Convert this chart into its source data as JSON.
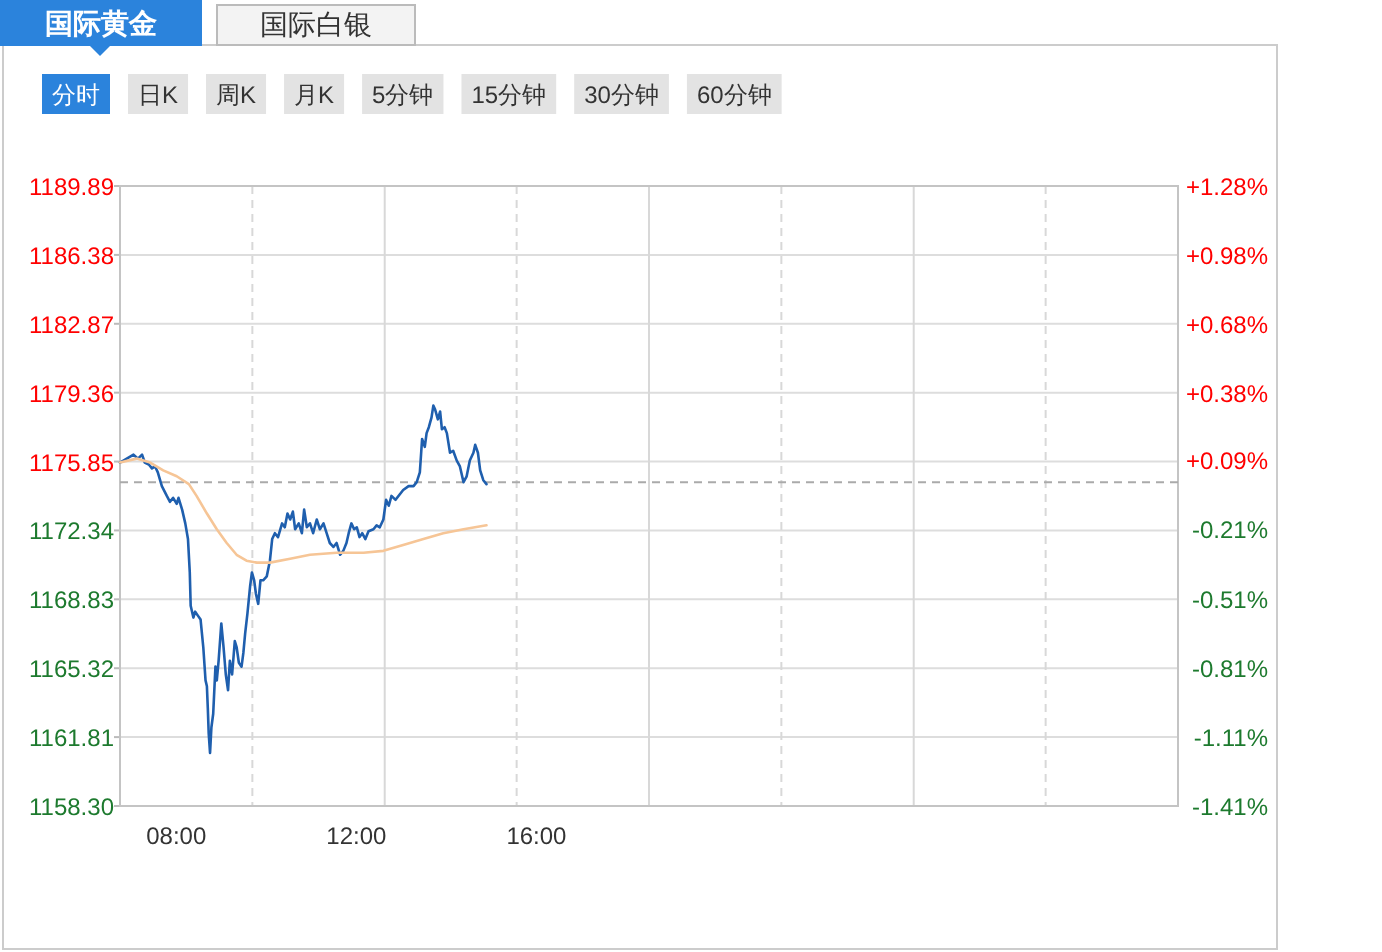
{
  "chart_data": {
    "type": "line",
    "title": "国际黄金",
    "annotations": [
      "国际白银",
      "分时",
      "日K",
      "周K",
      "月K",
      "5分钟",
      "15分钟",
      "30分钟",
      "60分钟"
    ],
    "xlim": [
      6.75,
      30.25
    ],
    "xticks": [
      {
        "value": 8,
        "label": "08:00"
      },
      {
        "value": 9.69,
        "label": null
      },
      {
        "value": 12,
        "label": "12:00"
      },
      {
        "value": 12.63,
        "label": null
      },
      {
        "value": 15.56,
        "label": null
      },
      {
        "value": 16,
        "label": "16:00"
      },
      {
        "value": 18.5,
        "label": null
      },
      {
        "value": 21.44,
        "label": null
      },
      {
        "value": 24.38,
        "label": null
      },
      {
        "value": 27.31,
        "label": null
      }
    ],
    "ylim": [
      1158.3,
      1189.89
    ],
    "yticks": [
      {
        "value": 1158.3,
        "label": "1158.30"
      },
      1161.81,
      1165.32,
      1168.83,
      1172.34,
      1175.85,
      1179.36,
      1182.87,
      1186.38,
      1189.89
    ],
    "y2lim": [
      -1.41,
      1.28
    ],
    "y2ticks": [
      {
        "value": -1.41,
        "label": "-1.41%"
      },
      {
        "value": -1.11,
        "label": "-1.11%"
      },
      {
        "value": -0.81,
        "label": "-0.81%"
      },
      {
        "value": -0.51,
        "label": "-0.51%"
      },
      {
        "value": -0.21,
        "label": "-0.21%"
      },
      {
        "value": 0.09,
        "label": "+0.09%"
      },
      {
        "value": 0.38,
        "label": "+0.38%"
      },
      {
        "value": 0.68,
        "label": "+0.68%"
      },
      {
        "value": 0.98,
        "label": "+0.98%"
      },
      {
        "value": 1.28,
        "label": "+1.28%"
      }
    ],
    "grid": true,
    "ref_lines": [
      {
        "axis": "y",
        "value": 1174.8,
        "color": "#aaaaaa",
        "line_style": "dashed"
      }
    ],
    "series": [
      {
        "color": "#1f5fae",
        "x": [
          6.75,
          6.9,
          7.05,
          7.15,
          7.24,
          7.3,
          7.39,
          7.46,
          7.53,
          7.59,
          7.68,
          7.79,
          7.86,
          7.93,
          8.01,
          8.05,
          8.13,
          8.2,
          8.26,
          8.3,
          8.32,
          8.38,
          8.42,
          8.48,
          8.54,
          8.6,
          8.65,
          8.68,
          8.7,
          8.72,
          8.75,
          8.78,
          8.82,
          8.87,
          8.9,
          8.94,
          9.0,
          9.05,
          9.1,
          9.15,
          9.19,
          9.24,
          9.3,
          9.34,
          9.39,
          9.45,
          9.49,
          9.53,
          9.58,
          9.64,
          9.68,
          9.73,
          9.77,
          9.82,
          9.87,
          9.93,
          10.01,
          10.08,
          10.13,
          10.19,
          10.26,
          10.35,
          10.41,
          10.47,
          10.53,
          10.59,
          10.64,
          10.72,
          10.79,
          10.84,
          10.9,
          10.97,
          11.04,
          11.12,
          11.19,
          11.27,
          11.34,
          11.41,
          11.49,
          11.56,
          11.64,
          11.71,
          11.78,
          11.83,
          11.89,
          11.95,
          12.01,
          12.07,
          12.13,
          12.2,
          12.27,
          12.38,
          12.45,
          12.52,
          12.6,
          12.66,
          12.72,
          12.78,
          12.87,
          12.97,
          13.04,
          13.16,
          13.27,
          13.34,
          13.41,
          13.46,
          13.52,
          13.56,
          13.61,
          13.67,
          13.71,
          13.75,
          13.81,
          13.86,
          13.9,
          13.96,
          14.01,
          14.08,
          14.15,
          14.23,
          14.3,
          14.38,
          14.45,
          14.52,
          14.6,
          14.64,
          14.7,
          14.75,
          14.82,
          14.89
        ],
        "values": [
          1175.8,
          1176.0,
          1176.2,
          1176.0,
          1176.2,
          1175.8,
          1175.7,
          1175.5,
          1175.6,
          1175.3,
          1174.6,
          1174.1,
          1173.8,
          1174.0,
          1173.7,
          1174.0,
          1173.4,
          1172.7,
          1171.9,
          1170.2,
          1168.5,
          1167.9,
          1168.2,
          1168.0,
          1167.8,
          1166.4,
          1164.7,
          1164.4,
          1163.3,
          1162.0,
          1161.0,
          1162.3,
          1163.0,
          1165.4,
          1164.7,
          1165.7,
          1167.6,
          1166.4,
          1165.0,
          1164.2,
          1165.7,
          1165.0,
          1166.7,
          1166.4,
          1165.6,
          1165.4,
          1166.1,
          1167.1,
          1168.1,
          1169.5,
          1170.2,
          1169.8,
          1169.1,
          1168.6,
          1169.8,
          1169.8,
          1170.0,
          1170.8,
          1171.9,
          1172.2,
          1172.0,
          1172.7,
          1172.5,
          1173.2,
          1172.9,
          1173.3,
          1172.4,
          1172.7,
          1172.2,
          1173.4,
          1172.5,
          1172.7,
          1172.2,
          1172.9,
          1172.4,
          1172.7,
          1172.2,
          1171.7,
          1171.5,
          1171.7,
          1171.1,
          1171.3,
          1171.7,
          1172.2,
          1172.7,
          1172.4,
          1172.5,
          1172.0,
          1172.2,
          1171.9,
          1172.3,
          1172.4,
          1172.6,
          1172.5,
          1172.9,
          1173.9,
          1173.6,
          1174.1,
          1173.9,
          1174.2,
          1174.4,
          1174.6,
          1174.6,
          1174.8,
          1175.3,
          1177.0,
          1176.6,
          1177.3,
          1177.6,
          1178.1,
          1178.7,
          1178.5,
          1178.0,
          1178.4,
          1177.5,
          1177.6,
          1177.3,
          1176.3,
          1176.4,
          1175.9,
          1175.6,
          1174.8,
          1175.1,
          1175.9,
          1176.3,
          1176.7,
          1176.3,
          1175.4,
          1174.9,
          1174.7
        ]
      },
      {
        "color": "#f6c596",
        "x": [
          6.75,
          7.12,
          7.42,
          7.71,
          8.01,
          8.28,
          8.45,
          8.68,
          8.9,
          9.12,
          9.34,
          9.56,
          9.79,
          10.08,
          10.53,
          10.97,
          11.56,
          12.16,
          12.6,
          13.04,
          13.49,
          13.93,
          14.38,
          14.89
        ],
        "values": [
          1175.8,
          1176.0,
          1175.8,
          1175.4,
          1175.1,
          1174.7,
          1174.1,
          1173.2,
          1172.4,
          1171.7,
          1171.1,
          1170.8,
          1170.7,
          1170.7,
          1170.9,
          1171.1,
          1171.2,
          1171.2,
          1171.3,
          1171.6,
          1171.9,
          1172.2,
          1172.4,
          1172.6
        ]
      }
    ]
  }
}
